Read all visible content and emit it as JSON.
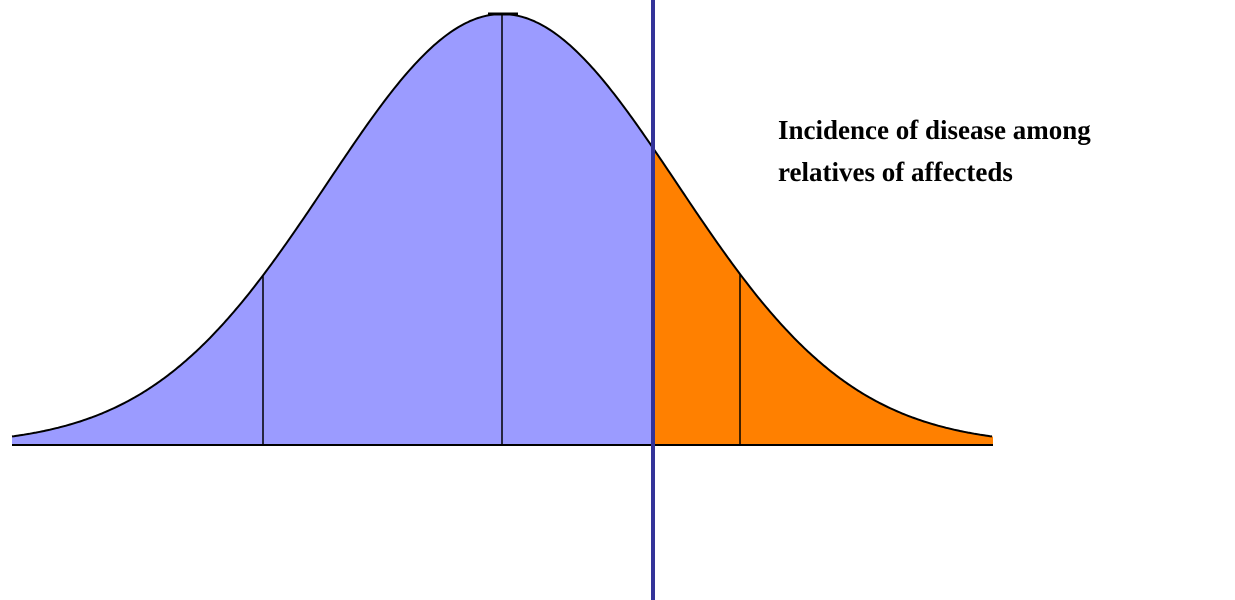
{
  "annotation": {
    "lines": [
      "Incidence of disease among",
      "relatives of affecteds"
    ]
  }
}
